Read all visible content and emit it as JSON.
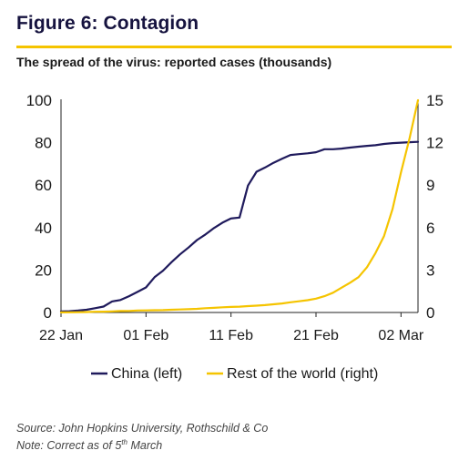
{
  "header": {
    "title": "Figure 6: Contagion",
    "subtitle": "The spread of the virus: reported cases (thousands)"
  },
  "footer": {
    "source": "Source: John Hopkins University, Rothschild & Co",
    "note_prefix": "Note: Correct as of 5",
    "note_sup": "th",
    "note_suffix": " March"
  },
  "colors": {
    "china": "#1f1a5c",
    "row": "#f5c400",
    "accent": "#f5c400",
    "axis": "#222222"
  },
  "chart_data": {
    "type": "line",
    "x_tick_labels": [
      "22 Jan",
      "01 Feb",
      "11 Feb",
      "21 Feb",
      "02 Mar"
    ],
    "x_tick_day_index": [
      0,
      10,
      20,
      30,
      40
    ],
    "x_range_days": [
      0,
      42
    ],
    "y_left": {
      "ticks": [
        0,
        20,
        40,
        60,
        80,
        100
      ],
      "range": [
        0,
        100
      ]
    },
    "y_right": {
      "ticks": [
        0,
        3,
        6,
        9,
        12,
        15
      ],
      "range": [
        0,
        15
      ]
    },
    "series": [
      {
        "name": "China (left)",
        "axis": "left",
        "color": "#1f1a5c",
        "values": [
          0.5,
          0.6,
          0.9,
          1.3,
          2.0,
          2.8,
          5.2,
          5.9,
          7.7,
          9.7,
          11.8,
          16.6,
          19.7,
          23.7,
          27.4,
          30.6,
          34.1,
          36.8,
          39.8,
          42.3,
          44.3,
          44.7,
          59.8,
          66.3,
          68.3,
          70.5,
          72.4,
          74.2,
          74.6,
          75.0,
          75.5,
          76.9,
          76.9,
          77.2,
          77.7,
          78.1,
          78.5,
          78.8,
          79.4,
          79.8,
          80.0,
          80.2,
          80.4
        ]
      },
      {
        "name": "Rest of the world (right)",
        "axis": "right",
        "color": "#f5c400",
        "values": [
          0.005,
          0.01,
          0.02,
          0.03,
          0.05,
          0.06,
          0.08,
          0.1,
          0.11,
          0.14,
          0.15,
          0.16,
          0.17,
          0.19,
          0.21,
          0.23,
          0.26,
          0.3,
          0.33,
          0.37,
          0.39,
          0.41,
          0.45,
          0.48,
          0.52,
          0.58,
          0.64,
          0.72,
          0.79,
          0.87,
          0.98,
          1.15,
          1.4,
          1.75,
          2.1,
          2.5,
          3.2,
          4.2,
          5.4,
          7.3,
          9.9,
          12.3,
          15.0
        ]
      }
    ],
    "legend_position": "bottom"
  }
}
